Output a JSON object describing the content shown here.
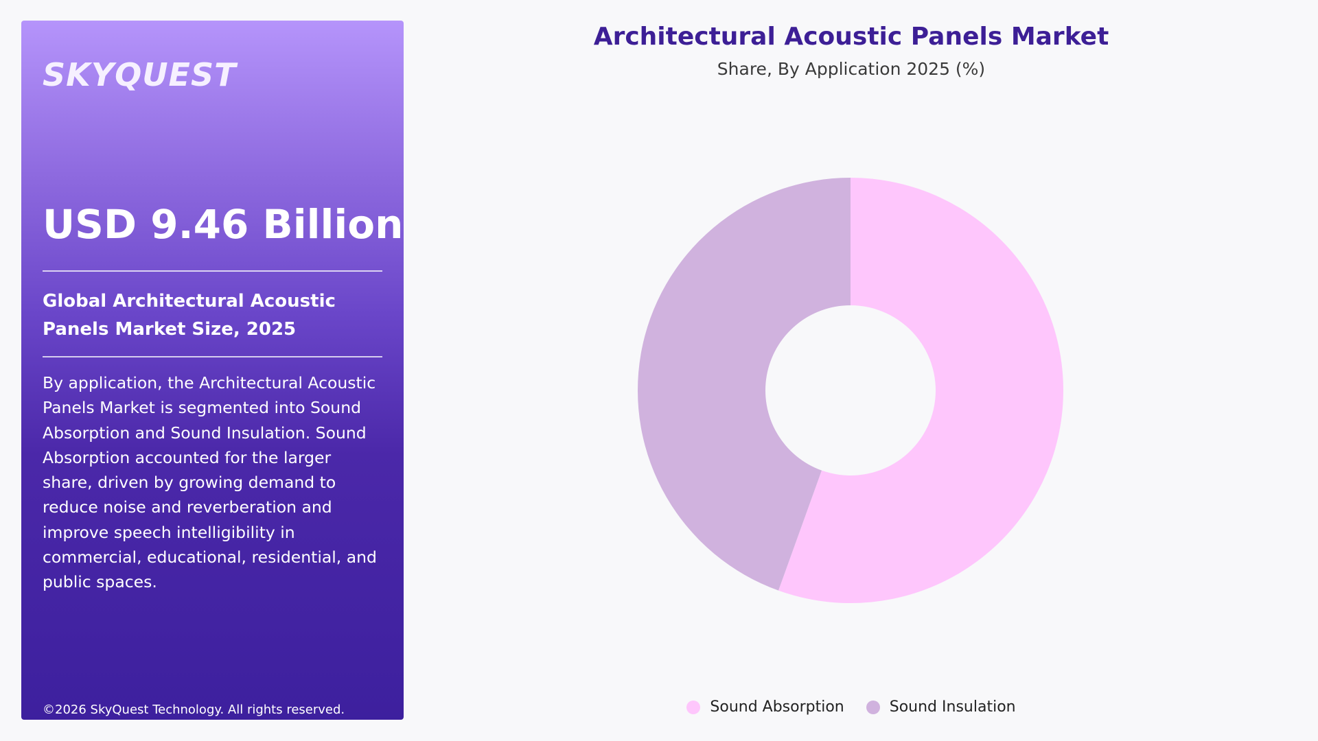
{
  "panel": {
    "logo_text": "SKYQUEST",
    "market_value": "USD 9.46 Billion",
    "subtitle": "Global Architectural Acoustic Panels Market Size, 2025",
    "description": "By application, the Architectural Acoustic Panels Market is segmented into Sound Absorption and Sound Insulation. Sound Absorption accounted for the larger share, driven by growing demand to reduce noise and reverberation and improve speech intelligibility in commercial, educational, residential, and public spaces.",
    "copyright": "©2026 SkyQuest Technology. All rights reserved.",
    "gradient_top": "#b594fb",
    "gradient_bottom": "#3d209e"
  },
  "chart_data": {
    "type": "pie",
    "donut": true,
    "title": "Architectural Acoustic Panels Market",
    "subtitle": "Share, By Application 2025 (%)",
    "categories": [
      "Sound Absorption",
      "Sound Insulation"
    ],
    "values": [
      55.5,
      44.5
    ],
    "colors": [
      "#fec6fc",
      "#d0b2de"
    ],
    "start_angle_deg": 0,
    "direction": "clockwise",
    "legend_position": "bottom"
  },
  "colors": {
    "title": "#3d1f96",
    "background": "#f8f8fa"
  }
}
